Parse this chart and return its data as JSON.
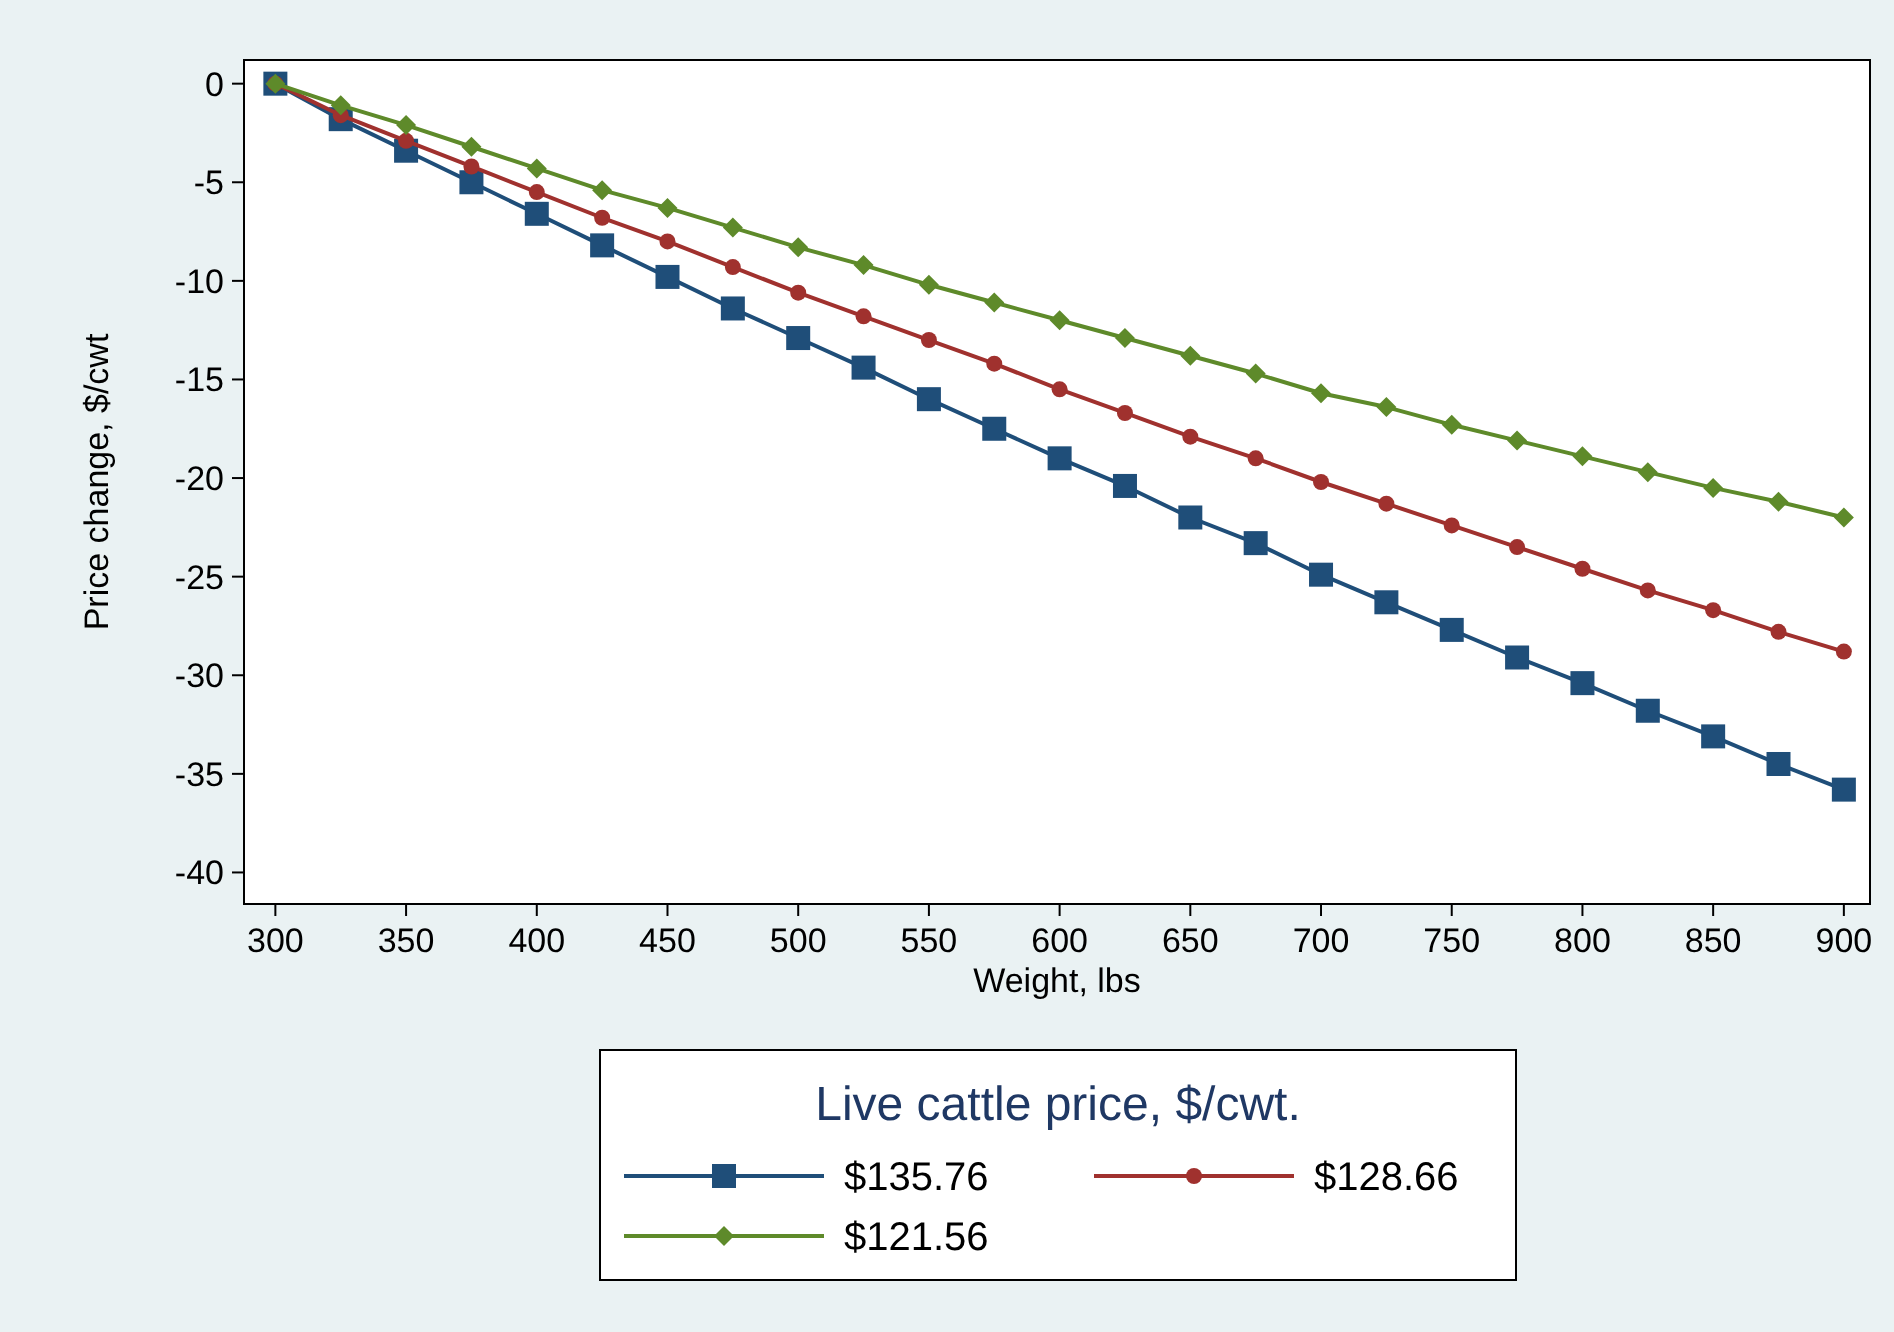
{
  "chart_data": {
    "type": "line",
    "xlabel": "Weight, lbs",
    "ylabel": "Price change, $/cwt",
    "legend_title": "Live cattle price, $/cwt.",
    "x": [
      300,
      325,
      350,
      375,
      400,
      425,
      450,
      475,
      500,
      525,
      550,
      575,
      600,
      625,
      650,
      675,
      700,
      725,
      750,
      775,
      800,
      825,
      850,
      875,
      900
    ],
    "series": [
      {
        "name": "$135.76",
        "color": "#1f4e79",
        "marker": "square",
        "values": [
          0,
          -1.8,
          -3.4,
          -5.0,
          -6.6,
          -8.2,
          -9.8,
          -11.4,
          -12.9,
          -14.4,
          -16.0,
          -17.5,
          -19.0,
          -20.4,
          -22.0,
          -23.3,
          -24.9,
          -26.3,
          -27.7,
          -29.1,
          -30.4,
          -31.8,
          -33.1,
          -34.5,
          -35.8
        ]
      },
      {
        "name": "$128.66",
        "color": "#a0312e",
        "marker": "circle",
        "values": [
          0,
          -1.6,
          -2.9,
          -4.2,
          -5.5,
          -6.8,
          -8.0,
          -9.3,
          -10.6,
          -11.8,
          -13.0,
          -14.2,
          -15.5,
          -16.7,
          -17.9,
          -19.0,
          -20.2,
          -21.3,
          -22.4,
          -23.5,
          -24.6,
          -25.7,
          -26.7,
          -27.8,
          -28.8
        ]
      },
      {
        "name": "$121.56",
        "color": "#5e8a2a",
        "marker": "diamond",
        "values": [
          0,
          -1.1,
          -2.1,
          -3.2,
          -4.3,
          -5.4,
          -6.3,
          -7.3,
          -8.3,
          -9.2,
          -10.2,
          -11.1,
          -12.0,
          -12.9,
          -13.8,
          -14.7,
          -15.7,
          -16.4,
          -17.3,
          -18.1,
          -18.9,
          -19.7,
          -20.5,
          -21.2,
          -22.0
        ]
      }
    ],
    "xlim": [
      288,
      910
    ],
    "xticks": [
      300,
      350,
      400,
      450,
      500,
      550,
      600,
      650,
      700,
      750,
      800,
      850,
      900
    ],
    "ylim": [
      -41.6,
      1.2
    ],
    "yticks": [
      0,
      -5,
      -10,
      -15,
      -20,
      -25,
      -30,
      -35,
      -40
    ],
    "grid": false,
    "legend": "bottom"
  }
}
